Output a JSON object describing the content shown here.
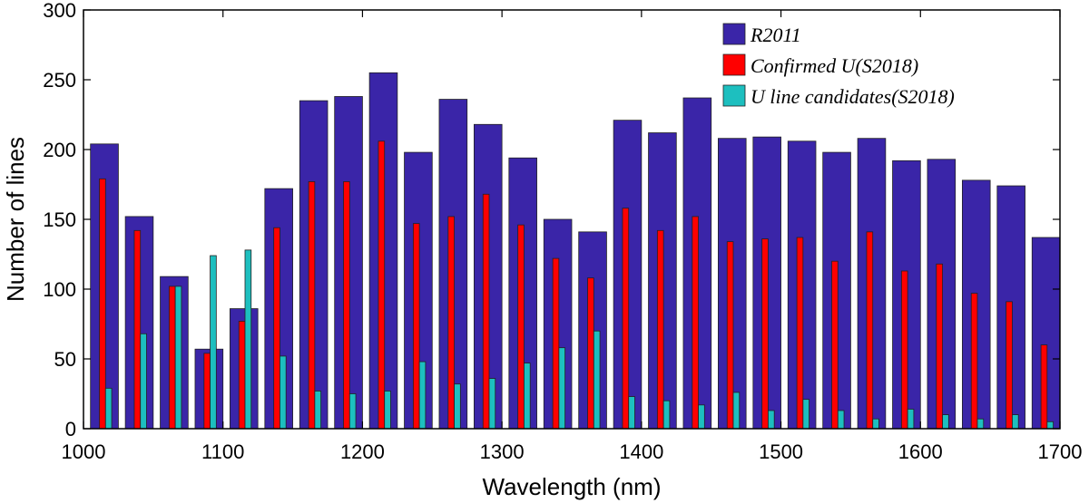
{
  "chart_data": {
    "type": "bar",
    "xlabel": "Wavelength (nm)",
    "ylabel": "Number of lines",
    "xlim": [
      1000,
      1700
    ],
    "ylim": [
      0,
      300
    ],
    "xticks": [
      1000,
      1100,
      1200,
      1300,
      1400,
      1500,
      1600,
      1700
    ],
    "yticks": [
      0,
      50,
      100,
      150,
      200,
      250,
      300
    ],
    "categories": [
      1015,
      1040,
      1065,
      1090,
      1115,
      1140,
      1165,
      1190,
      1215,
      1240,
      1265,
      1290,
      1315,
      1340,
      1365,
      1390,
      1415,
      1440,
      1465,
      1490,
      1515,
      1540,
      1565,
      1590,
      1615,
      1640,
      1665,
      1690
    ],
    "series": [
      {
        "name": "R2011",
        "legend_label": "R2011",
        "color": "#3a25a8",
        "values": [
          204,
          152,
          109,
          57,
          86,
          172,
          235,
          238,
          255,
          198,
          236,
          218,
          194,
          150,
          141,
          221,
          212,
          237,
          208,
          209,
          206,
          198,
          208,
          192,
          193,
          178,
          174,
          137
        ]
      },
      {
        "name": "Confirmed U (S2018)",
        "legend_label": "Confirmed   U(S2018)",
        "color": "#ff0000",
        "values": [
          179,
          142,
          102,
          54,
          77,
          144,
          177,
          177,
          206,
          147,
          152,
          168,
          146,
          122,
          108,
          158,
          142,
          152,
          134,
          136,
          137,
          120,
          141,
          113,
          118,
          97,
          91,
          60
        ]
      },
      {
        "name": "U line candidates (S2018)",
        "legend_label": "U line     candidates(S2018)",
        "color": "#1dbfbf",
        "values": [
          29,
          68,
          102,
          124,
          128,
          52,
          27,
          25,
          27,
          48,
          32,
          36,
          47,
          58,
          70,
          23,
          20,
          17,
          26,
          13,
          21,
          13,
          7,
          14,
          10,
          7,
          10,
          5
        ]
      }
    ],
    "legend_position": "top-right",
    "grid": false
  }
}
